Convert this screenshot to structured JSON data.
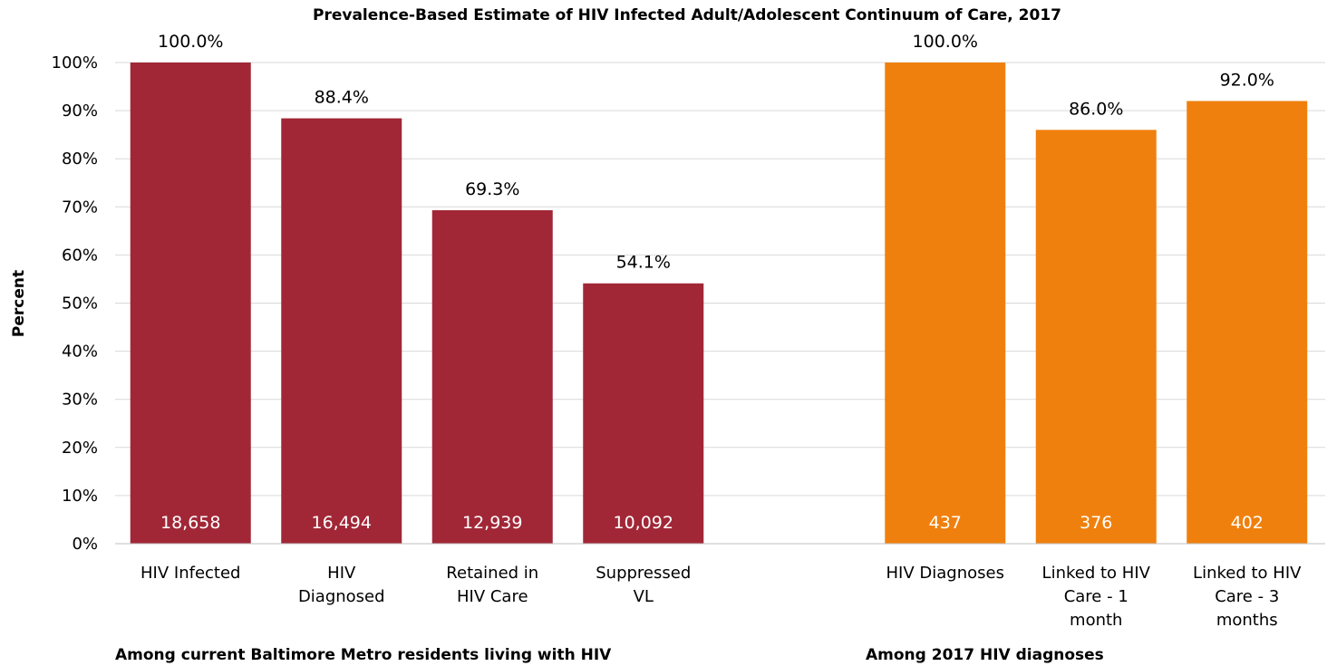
{
  "chart_data": {
    "type": "bar",
    "title": "Prevalence-Based Estimate of HIV Infected Adult/Adolescent Continuum of Care, 2017",
    "ylabel": "Percent",
    "ylim": [
      0,
      100
    ],
    "yticks": [
      "0%",
      "10%",
      "20%",
      "30%",
      "40%",
      "50%",
      "60%",
      "70%",
      "80%",
      "90%",
      "100%"
    ],
    "grid": true,
    "groups": [
      {
        "label": "Among current Baltimore Metro residents living with HIV",
        "color": "#a12737",
        "bars": [
          {
            "category": [
              "HIV Infected"
            ],
            "value": 100.0,
            "value_label": "100.0%",
            "count_label": "18,658"
          },
          {
            "category": [
              "HIV",
              "Diagnosed"
            ],
            "value": 88.4,
            "value_label": "88.4%",
            "count_label": "16,494"
          },
          {
            "category": [
              "Retained in",
              "HIV Care"
            ],
            "value": 69.3,
            "value_label": "69.3%",
            "count_label": "12,939"
          },
          {
            "category": [
              "Suppressed",
              "VL"
            ],
            "value": 54.1,
            "value_label": "54.1%",
            "count_label": "10,092"
          }
        ]
      },
      {
        "label": "Among 2017 HIV diagnoses",
        "color": "#f0800d",
        "bars": [
          {
            "category": [
              "HIV Diagnoses"
            ],
            "value": 100.0,
            "value_label": "100.0%",
            "count_label": "437"
          },
          {
            "category": [
              "Linked to HIV",
              "Care - 1",
              "month"
            ],
            "value": 86.0,
            "value_label": "86.0%",
            "count_label": "376"
          },
          {
            "category": [
              "Linked to HIV",
              "Care - 3",
              "months"
            ],
            "value": 92.0,
            "value_label": "92.0%",
            "count_label": "402"
          }
        ]
      }
    ]
  }
}
